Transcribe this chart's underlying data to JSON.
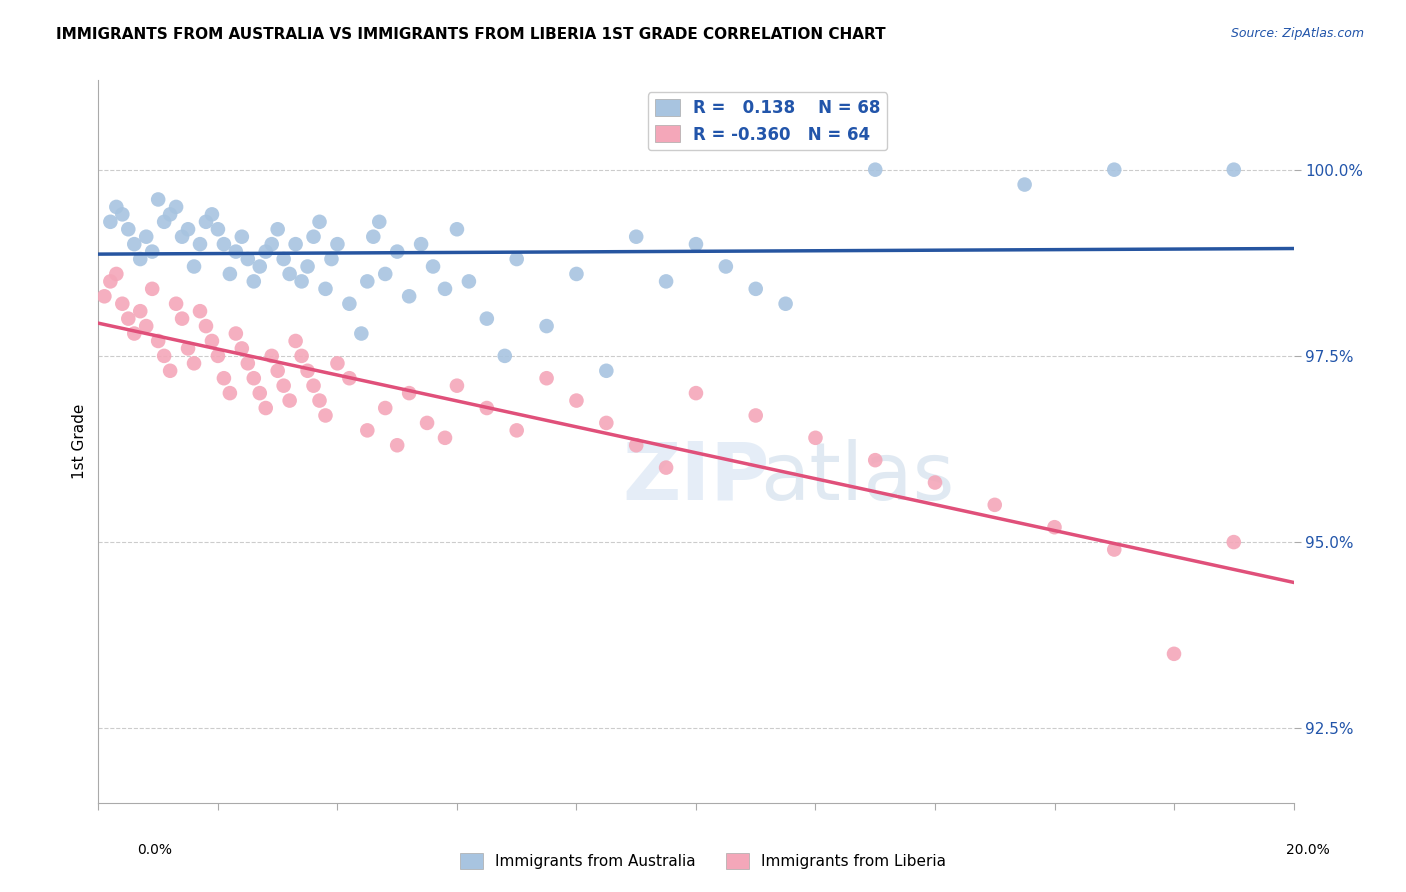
{
  "title": "IMMIGRANTS FROM AUSTRALIA VS IMMIGRANTS FROM LIBERIA 1ST GRADE CORRELATION CHART",
  "source": "Source: ZipAtlas.com",
  "ylabel": "1st Grade",
  "yticks": [
    92.5,
    95.0,
    97.5,
    100.0
  ],
  "ytick_labels": [
    "92.5%",
    "95.0%",
    "97.5%",
    "100.0%"
  ],
  "xlim": [
    0.0,
    0.2
  ],
  "ylim": [
    91.5,
    101.2
  ],
  "australia_color": "#a8c4e0",
  "liberia_color": "#f4a7b9",
  "australia_line_color": "#2655a0",
  "liberia_line_color": "#e0507a",
  "australia_R": 0.138,
  "australia_N": 68,
  "liberia_R": -0.36,
  "liberia_N": 64,
  "legend_label_australia": "Immigrants from Australia",
  "legend_label_liberia": "Immigrants from Liberia",
  "australia_scatter_x": [
    0.002,
    0.003,
    0.004,
    0.005,
    0.006,
    0.007,
    0.008,
    0.009,
    0.01,
    0.011,
    0.012,
    0.013,
    0.014,
    0.015,
    0.016,
    0.017,
    0.018,
    0.019,
    0.02,
    0.021,
    0.022,
    0.023,
    0.024,
    0.025,
    0.026,
    0.027,
    0.028,
    0.029,
    0.03,
    0.031,
    0.032,
    0.033,
    0.034,
    0.035,
    0.036,
    0.037,
    0.038,
    0.039,
    0.04,
    0.042,
    0.044,
    0.045,
    0.046,
    0.047,
    0.048,
    0.05,
    0.052,
    0.054,
    0.056,
    0.058,
    0.06,
    0.062,
    0.065,
    0.068,
    0.07,
    0.075,
    0.08,
    0.085,
    0.09,
    0.095,
    0.1,
    0.105,
    0.11,
    0.115,
    0.13,
    0.155,
    0.17,
    0.19
  ],
  "australia_scatter_y": [
    99.3,
    99.5,
    99.4,
    99.2,
    99.0,
    98.8,
    99.1,
    98.9,
    99.6,
    99.3,
    99.4,
    99.5,
    99.1,
    99.2,
    98.7,
    99.0,
    99.3,
    99.4,
    99.2,
    99.0,
    98.6,
    98.9,
    99.1,
    98.8,
    98.5,
    98.7,
    98.9,
    99.0,
    99.2,
    98.8,
    98.6,
    99.0,
    98.5,
    98.7,
    99.1,
    99.3,
    98.4,
    98.8,
    99.0,
    98.2,
    97.8,
    98.5,
    99.1,
    99.3,
    98.6,
    98.9,
    98.3,
    99.0,
    98.7,
    98.4,
    99.2,
    98.5,
    98.0,
    97.5,
    98.8,
    97.9,
    98.6,
    97.3,
    99.1,
    98.5,
    99.0,
    98.7,
    98.4,
    98.2,
    100.0,
    99.8,
    100.0,
    100.0
  ],
  "liberia_scatter_x": [
    0.001,
    0.002,
    0.003,
    0.004,
    0.005,
    0.006,
    0.007,
    0.008,
    0.009,
    0.01,
    0.011,
    0.012,
    0.013,
    0.014,
    0.015,
    0.016,
    0.017,
    0.018,
    0.019,
    0.02,
    0.021,
    0.022,
    0.023,
    0.024,
    0.025,
    0.026,
    0.027,
    0.028,
    0.029,
    0.03,
    0.031,
    0.032,
    0.033,
    0.034,
    0.035,
    0.036,
    0.037,
    0.038,
    0.04,
    0.042,
    0.045,
    0.048,
    0.05,
    0.052,
    0.055,
    0.058,
    0.06,
    0.065,
    0.07,
    0.075,
    0.08,
    0.085,
    0.09,
    0.095,
    0.1,
    0.11,
    0.12,
    0.13,
    0.14,
    0.15,
    0.16,
    0.17,
    0.18,
    0.19
  ],
  "liberia_scatter_y": [
    98.3,
    98.5,
    98.6,
    98.2,
    98.0,
    97.8,
    98.1,
    97.9,
    98.4,
    97.7,
    97.5,
    97.3,
    98.2,
    98.0,
    97.6,
    97.4,
    98.1,
    97.9,
    97.7,
    97.5,
    97.2,
    97.0,
    97.8,
    97.6,
    97.4,
    97.2,
    97.0,
    96.8,
    97.5,
    97.3,
    97.1,
    96.9,
    97.7,
    97.5,
    97.3,
    97.1,
    96.9,
    96.7,
    97.4,
    97.2,
    96.5,
    96.8,
    96.3,
    97.0,
    96.6,
    96.4,
    97.1,
    96.8,
    96.5,
    97.2,
    96.9,
    96.6,
    96.3,
    96.0,
    97.0,
    96.7,
    96.4,
    96.1,
    95.8,
    95.5,
    95.2,
    94.9,
    93.5,
    95.0
  ]
}
